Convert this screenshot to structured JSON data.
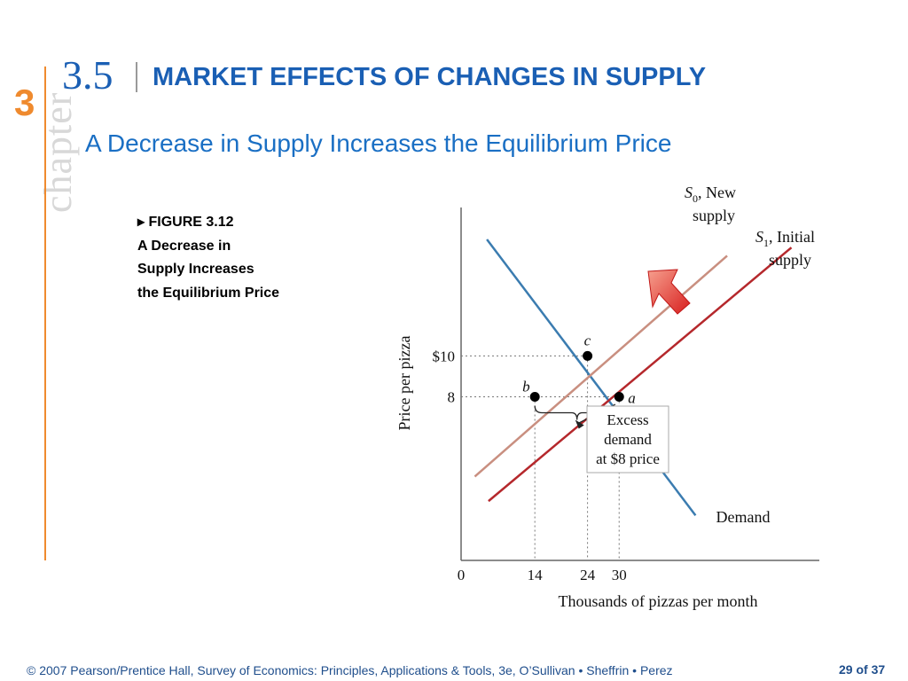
{
  "slide": {
    "chapter_word": "chapter",
    "chapter_number": "3",
    "section_number": "3.5",
    "title": "MARKET EFFECTS OF CHANGES IN SUPPLY",
    "subtitle": "A Decrease in Supply Increases the Equilibrium Price",
    "figure_caption": {
      "lines": [
        "▸ FIGURE 3.12",
        "A Decrease in",
        "Supply Increases",
        "the Equilibrium Price"
      ]
    },
    "footer": "© 2007 Pearson/Prentice Hall, Survey of Economics: Principles, Applications & Tools, 3e, O’Sullivan • Sheffrin • Perez",
    "page": "29 of 37"
  },
  "colors": {
    "accent_orange": "#ef8a2e",
    "title_blue": "#1a5fb4",
    "demand": "#3b7cb0",
    "new_supply": "#c98f80",
    "initial_supply": "#b5282c",
    "arrow": "#e0322b"
  },
  "chart_data": {
    "type": "line",
    "xlabel": "Thousands of pizzas per month",
    "ylabel": "Price per pizza",
    "x_ticks": [
      {
        "value": 0,
        "label": "0"
      },
      {
        "value": 14,
        "label": "14"
      },
      {
        "value": 24,
        "label": "24"
      },
      {
        "value": 30,
        "label": "30"
      }
    ],
    "y_ticks": [
      {
        "value": 8,
        "label": "8"
      },
      {
        "value": 10,
        "label": "$10"
      }
    ],
    "series": [
      {
        "name": "Demand",
        "label": "Demand",
        "color": "#3b7cb0",
        "points": [
          [
            4.9,
            15.7
          ],
          [
            44.5,
            2.2
          ]
        ]
      },
      {
        "name": "S0, New supply",
        "label_main": "S",
        "label_sub": "0",
        "label_rest": ", New",
        "label_line2": "supply",
        "color": "#c98f80",
        "points": [
          [
            2.6,
            4.1
          ],
          [
            50.5,
            14.9
          ]
        ]
      },
      {
        "name": "S1, Initial supply",
        "label_main": "S",
        "label_sub": "1",
        "label_rest": ", Initial",
        "label_line2": "supply",
        "color": "#b5282c",
        "points": [
          [
            5.2,
            2.9
          ],
          [
            62.7,
            15.3
          ]
        ]
      }
    ],
    "points": [
      {
        "label": "a",
        "x": 30,
        "y": 8
      },
      {
        "label": "b",
        "x": 14,
        "y": 8
      },
      {
        "label": "c",
        "x": 24,
        "y": 10
      }
    ],
    "annotations": {
      "excess_demand": [
        "Excess",
        "demand",
        "at $8 price"
      ],
      "range_from": 14,
      "range_to": 30
    },
    "xlim": [
      0,
      68
    ],
    "ylim": [
      0,
      17
    ]
  }
}
